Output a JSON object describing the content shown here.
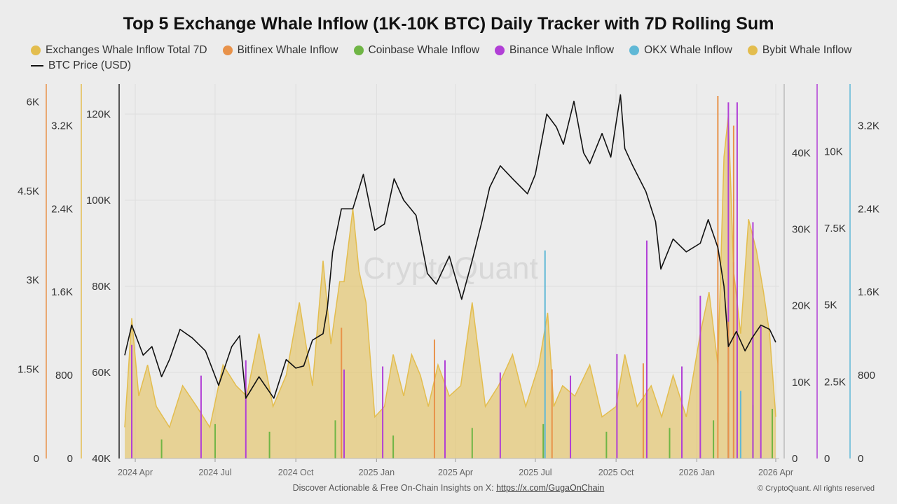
{
  "title": "Top 5 Exchange Whale Inflow (1K-10K BTC) Daily Tracker with 7D Rolling Sum",
  "watermark": "CryptoQuant",
  "footer": {
    "text": "Discover Actionable & Free On-Chain Insights on X: ",
    "link": "https://x.com/GugaOnChain",
    "copyright": "© CryptoQuant. All rights reserved"
  },
  "legend": [
    {
      "label": "Exchanges Whale Inflow Total 7D",
      "color": "#e3bd4e"
    },
    {
      "label": "Bitfinex Whale Inflow",
      "color": "#e8924a"
    },
    {
      "label": "Coinbase Whale Inflow",
      "color": "#6fb545"
    },
    {
      "label": "Binance Whale Inflow",
      "color": "#b13fd6"
    },
    {
      "label": "OKX Whale Inflow",
      "color": "#5fb8d6"
    },
    {
      "label": "Bybit Whale Inflow",
      "color": "#e3bd4e"
    },
    {
      "label": "BTC Price (USD)",
      "color": "#111111"
    }
  ],
  "chart_data": {
    "type": "area",
    "x_range": [
      "2024-03-20",
      "2026-04-05"
    ],
    "x_ticks": [
      "2024 Apr",
      "2024 Jul",
      "2024 Oct",
      "2025 Jan",
      "2025 Apr",
      "2025 Jul",
      "2025 Oct",
      "2026 Jan",
      "2026 Apr"
    ],
    "grid": true,
    "axes": {
      "bitfinex": {
        "ticks": [
          "0",
          "1.5K",
          "3K",
          "4.5K",
          "6K"
        ],
        "range": [
          0,
          6300
        ]
      },
      "total_7d": {
        "ticks": [
          "0",
          "800",
          "1.6K",
          "2.4K",
          "3.2K"
        ],
        "range": [
          0,
          3600
        ]
      },
      "price": {
        "ticks": [
          "40K",
          "60K",
          "80K",
          "100K",
          "120K"
        ],
        "range": [
          40000,
          127000
        ]
      },
      "coinbase": {
        "ticks": [
          "0",
          "10K",
          "20K",
          "30K",
          "40K"
        ],
        "range": [
          0,
          49000
        ]
      },
      "binance": {
        "ticks": [
          "0",
          "2.5K",
          "5K",
          "7.5K",
          "10K"
        ],
        "range": [
          0,
          12200
        ]
      },
      "okx": {
        "ticks": [
          "0",
          "800",
          "1.6K",
          "2.4K",
          "3.2K"
        ],
        "range": [
          0,
          3600
        ]
      }
    },
    "series": [
      {
        "name": "BTC Price (USD)",
        "axis": "price",
        "color": "#111111",
        "dates": [
          "2024-03-20",
          "2024-03-28",
          "2024-04-10",
          "2024-04-20",
          "2024-05-01",
          "2024-05-10",
          "2024-05-22",
          "2024-06-05",
          "2024-06-20",
          "2024-07-05",
          "2024-07-20",
          "2024-07-29",
          "2024-08-05",
          "2024-08-20",
          "2024-09-06",
          "2024-09-20",
          "2024-10-01",
          "2024-10-10",
          "2024-10-20",
          "2024-11-01",
          "2024-11-06",
          "2024-11-12",
          "2024-11-22",
          "2024-12-05",
          "2024-12-17",
          "2024-12-30",
          "2025-01-10",
          "2025-01-21",
          "2025-02-01",
          "2025-02-15",
          "2025-02-28",
          "2025-03-10",
          "2025-03-25",
          "2025-04-08",
          "2025-04-20",
          "2025-05-01",
          "2025-05-10",
          "2025-05-22",
          "2025-06-05",
          "2025-06-22",
          "2025-07-01",
          "2025-07-14",
          "2025-07-25",
          "2025-08-02",
          "2025-08-14",
          "2025-08-25",
          "2025-09-01",
          "2025-09-15",
          "2025-09-25",
          "2025-10-06",
          "2025-10-11",
          "2025-10-20",
          "2025-11-04",
          "2025-11-15",
          "2025-11-21",
          "2025-12-05",
          "2025-12-20",
          "2026-01-05",
          "2026-01-14",
          "2026-01-25",
          "2026-02-01",
          "2026-02-06",
          "2026-02-15",
          "2026-02-25",
          "2026-03-05",
          "2026-03-15",
          "2026-03-25",
          "2026-04-01"
        ],
        "values": [
          64000,
          71000,
          64000,
          66000,
          59000,
          63000,
          70000,
          68000,
          65000,
          57000,
          66000,
          68500,
          54000,
          59000,
          54000,
          63000,
          61000,
          61500,
          67500,
          69000,
          75000,
          88000,
          98000,
          98000,
          106000,
          93000,
          94500,
          105000,
          100000,
          96500,
          83000,
          80500,
          87000,
          77000,
          86000,
          95000,
          103000,
          108000,
          105000,
          101500,
          106000,
          120000,
          117000,
          113000,
          123000,
          111000,
          108500,
          115500,
          110000,
          124500,
          112000,
          108000,
          102000,
          95000,
          84000,
          91000,
          88000,
          90000,
          95500,
          89000,
          80000,
          66000,
          69500,
          65000,
          68000,
          71000,
          70000,
          67000
        ]
      },
      {
        "name": "Exchanges Whale Inflow Total 7D",
        "axis": "total_7d",
        "color": "#e3bd4e",
        "dates": [
          "2024-03-20",
          "2024-03-28",
          "2024-04-05",
          "2024-04-15",
          "2024-04-25",
          "2024-05-10",
          "2024-05-25",
          "2024-06-10",
          "2024-06-25",
          "2024-07-10",
          "2024-07-25",
          "2024-08-06",
          "2024-08-20",
          "2024-09-05",
          "2024-09-20",
          "2024-10-05",
          "2024-10-20",
          "2024-11-01",
          "2024-11-10",
          "2024-11-20",
          "2024-11-25",
          "2024-12-05",
          "2024-12-12",
          "2024-12-20",
          "2024-12-30",
          "2025-01-10",
          "2025-01-20",
          "2025-02-01",
          "2025-02-10",
          "2025-02-20",
          "2025-03-01",
          "2025-03-12",
          "2025-03-25",
          "2025-04-07",
          "2025-04-20",
          "2025-05-05",
          "2025-05-20",
          "2025-06-05",
          "2025-06-20",
          "2025-07-05",
          "2025-07-15",
          "2025-07-22",
          "2025-08-01",
          "2025-08-15",
          "2025-09-01",
          "2025-09-15",
          "2025-10-01",
          "2025-10-11",
          "2025-10-25",
          "2025-11-10",
          "2025-11-22",
          "2025-12-05",
          "2025-12-20",
          "2026-01-05",
          "2026-01-15",
          "2026-01-25",
          "2026-02-01",
          "2026-02-06",
          "2026-02-12",
          "2026-02-20",
          "2026-03-01",
          "2026-03-10",
          "2026-03-18",
          "2026-03-25",
          "2026-04-01"
        ],
        "values": [
          300,
          1350,
          600,
          900,
          500,
          300,
          700,
          500,
          300,
          900,
          700,
          600,
          1200,
          500,
          800,
          1500,
          700,
          1900,
          1100,
          1700,
          1700,
          2400,
          1800,
          1500,
          400,
          500,
          1000,
          600,
          1000,
          800,
          500,
          900,
          600,
          700,
          1500,
          500,
          700,
          1000,
          500,
          900,
          1400,
          500,
          700,
          600,
          900,
          400,
          500,
          1000,
          500,
          700,
          400,
          800,
          400,
          1200,
          1600,
          900,
          2900,
          3300,
          1800,
          1200,
          2300,
          2000,
          1600,
          1200,
          400
        ]
      },
      {
        "name": "Bitfinex Whale Inflow",
        "axis": "bitfinex",
        "color": "#e8924a",
        "dates": [
          "2024-11-22",
          "2025-03-08",
          "2025-07-20",
          "2025-11-01",
          "2026-01-25",
          "2026-02-06",
          "2026-02-12"
        ],
        "values": [
          2200,
          2000,
          1500,
          1600,
          6100,
          2300,
          5600
        ]
      },
      {
        "name": "Coinbase Whale Inflow",
        "axis": "coinbase",
        "color": "#6fb545",
        "dates": [
          "2024-05-01",
          "2024-07-01",
          "2024-09-01",
          "2024-11-15",
          "2025-01-20",
          "2025-04-20",
          "2025-07-10",
          "2025-09-20",
          "2025-12-01",
          "2026-01-20",
          "2026-02-06",
          "2026-03-06",
          "2026-03-28"
        ],
        "values": [
          2500,
          4500,
          3500,
          5000,
          3000,
          4000,
          4500,
          3500,
          4000,
          5000,
          6000,
          7000,
          6500
        ]
      },
      {
        "name": "Binance Whale Inflow",
        "axis": "binance",
        "color": "#b13fd6",
        "dates": [
          "2024-03-28",
          "2024-06-15",
          "2024-08-05",
          "2024-11-25",
          "2025-01-08",
          "2025-03-20",
          "2025-05-22",
          "2025-08-10",
          "2025-10-02",
          "2025-11-05",
          "2025-12-15",
          "2026-01-05",
          "2026-02-06",
          "2026-02-12",
          "2026-02-16",
          "2026-03-06",
          "2026-03-15"
        ],
        "values": [
          3700,
          2700,
          3200,
          2900,
          3000,
          3200,
          2800,
          2700,
          3400,
          7100,
          3000,
          5300,
          11600,
          6400,
          11600,
          7700,
          4300
        ]
      },
      {
        "name": "OKX Whale Inflow",
        "axis": "okx",
        "color": "#5fb8d6",
        "dates": [
          "2025-07-12",
          "2026-02-20"
        ],
        "values": [
          2000,
          650
        ]
      }
    ]
  }
}
